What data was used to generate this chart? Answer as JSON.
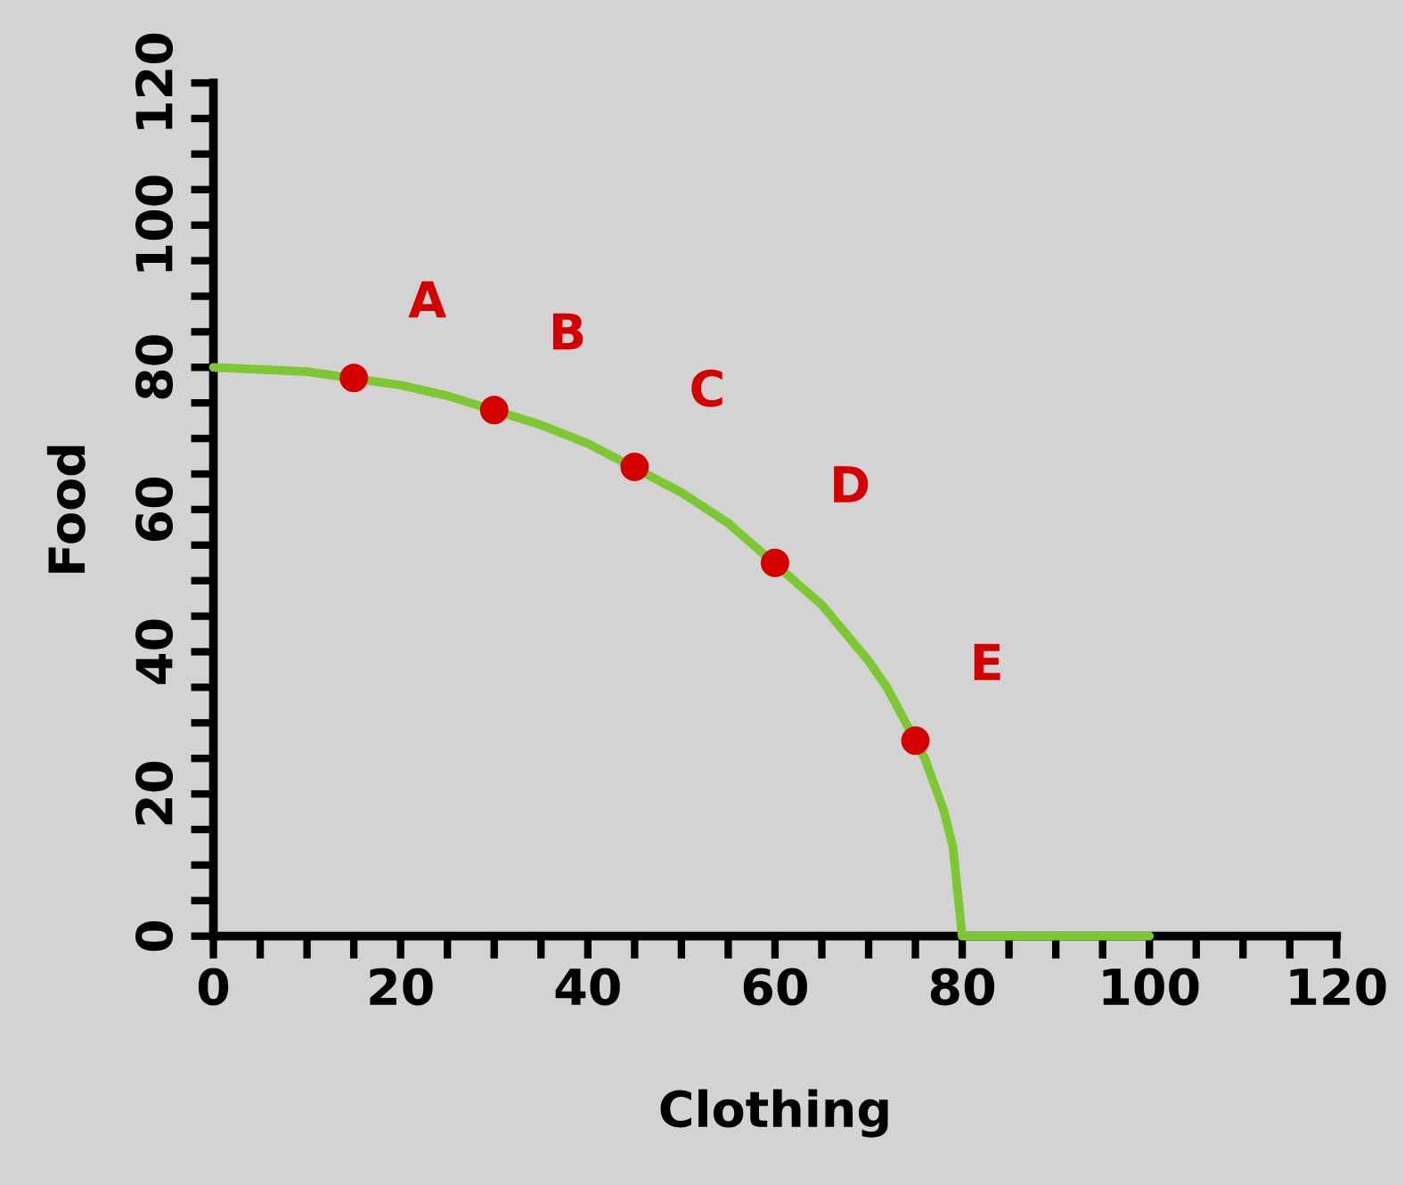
{
  "chart_data": {
    "type": "line",
    "xlabel": "Clothing",
    "ylabel": "Food",
    "xlim": [
      0,
      120
    ],
    "ylim": [
      0,
      120
    ],
    "xticks": [
      0,
      {
        "value": 5,
        "label": null
      },
      {
        "value": 10,
        "label": null
      },
      {
        "value": 15,
        "label": null
      },
      20,
      {
        "value": 25,
        "label": null
      },
      {
        "value": 30,
        "label": null
      },
      {
        "value": 35,
        "label": null
      },
      40,
      {
        "value": 45,
        "label": null
      },
      {
        "value": 50,
        "label": null
      },
      {
        "value": 55,
        "label": null
      },
      60,
      {
        "value": 65,
        "label": null
      },
      {
        "value": 70,
        "label": null
      },
      {
        "value": 75,
        "label": null
      },
      80,
      {
        "value": 85,
        "label": null
      },
      {
        "value": 90,
        "label": null
      },
      {
        "value": 95,
        "label": null
      },
      100,
      {
        "value": 105,
        "label": null
      },
      {
        "value": 110,
        "label": null
      },
      {
        "value": 115,
        "label": null
      },
      120
    ],
    "yticks": [
      0,
      {
        "value": 5,
        "label": null
      },
      {
        "value": 10,
        "label": null
      },
      {
        "value": 15,
        "label": null
      },
      20,
      {
        "value": 25,
        "label": null
      },
      {
        "value": 30,
        "label": null
      },
      {
        "value": 35,
        "label": null
      },
      40,
      {
        "value": 45,
        "label": null
      },
      {
        "value": 50,
        "label": null
      },
      {
        "value": 55,
        "label": null
      },
      60,
      {
        "value": 65,
        "label": null
      },
      {
        "value": 70,
        "label": null
      },
      {
        "value": 75,
        "label": null
      },
      80,
      {
        "value": 85,
        "label": null
      },
      {
        "value": 90,
        "label": null
      },
      {
        "value": 95,
        "label": null
      },
      100,
      {
        "value": 105,
        "label": null
      },
      {
        "value": 110,
        "label": null
      },
      {
        "value": 115,
        "label": null
      },
      120
    ],
    "grid": false,
    "legend": false,
    "series": [
      {
        "color": "#7dc733",
        "marker": "none",
        "x": [
          0,
          10,
          20,
          25,
          35,
          40,
          50,
          55,
          65,
          70,
          72,
          76,
          78,
          79,
          80,
          100
        ],
        "values": [
          80,
          79.4,
          77.5,
          76,
          71.9,
          69.3,
          62.4,
          58.1,
          46.6,
          38.7,
          34.9,
          25,
          17.8,
          12.6,
          0,
          0
        ]
      },
      {
        "type": "scatter",
        "color": "#d40000",
        "marker": "circle",
        "x": [
          15,
          30,
          45,
          60,
          75
        ],
        "values": [
          78.5,
          74,
          66,
          52.5,
          27.5
        ],
        "value_labels": [
          "A",
          "B",
          "C",
          "D",
          "E"
        ]
      }
    ]
  }
}
